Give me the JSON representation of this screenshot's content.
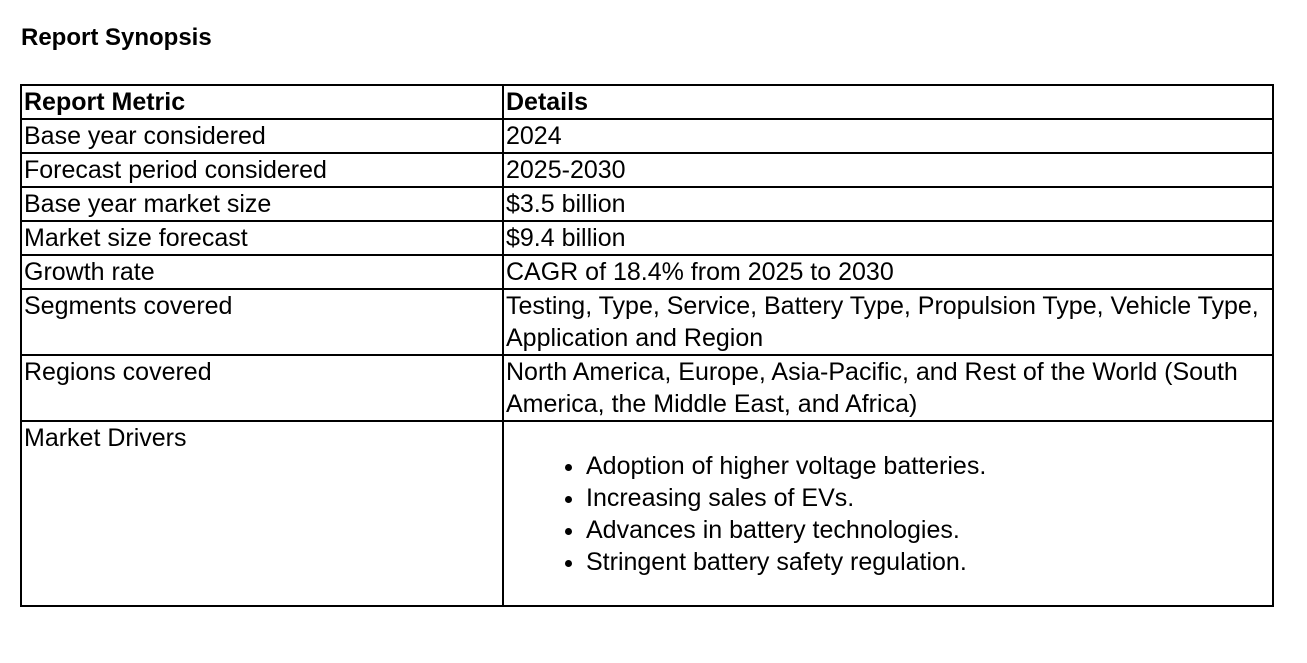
{
  "title": "Report Synopsis",
  "headers": [
    "Report Metric",
    "Details"
  ],
  "rows": [
    [
      "Base year considered",
      "2024"
    ],
    [
      "Forecast period considered",
      "2025-2030"
    ],
    [
      "Base year market size",
      "$3.5 billion"
    ],
    [
      "Market size forecast",
      "$9.4 billion"
    ],
    [
      "Growth rate",
      "CAGR of 18.4% from 2025 to 2030"
    ],
    [
      "Segments covered",
      "Testing, Type, Service, Battery Type, Propulsion Type, Vehicle Type, Application and Region"
    ],
    [
      "Regions covered",
      "North America, Europe, Asia-Pacific, and Rest of the World (South America, the Middle East, and Africa)"
    ]
  ],
  "drivers": {
    "label": "Market Drivers",
    "items": [
      "Adoption of higher voltage batteries.",
      "Increasing sales of EVs.",
      "Advances in battery technologies.",
      "Stringent battery safety regulation."
    ]
  }
}
